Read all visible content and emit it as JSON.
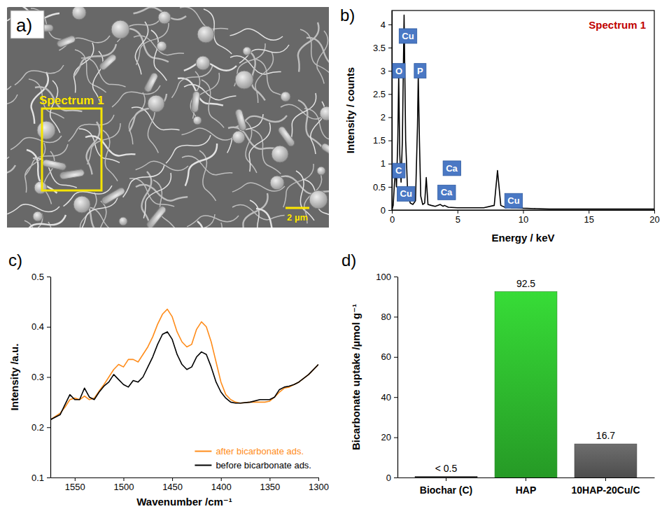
{
  "chart_data": [
    {
      "type": "image",
      "panel": "a)",
      "annotations": [
        "Spectrum 1"
      ],
      "scale_bar": "2 µm"
    },
    {
      "type": "line",
      "panel": "b)",
      "title": "Spectrum 1",
      "x_label": "Energy / keV",
      "y_label": "Intensity / counts",
      "x": [
        0,
        0.1,
        0.2,
        0.28,
        0.35,
        0.45,
        0.52,
        0.6,
        0.7,
        0.8,
        0.93,
        1.05,
        1.2,
        1.4,
        1.6,
        1.8,
        1.95,
        2.01,
        2.1,
        2.2,
        2.35,
        2.5,
        2.62,
        2.75,
        3.0,
        3.3,
        3.69,
        3.9,
        4.01,
        4.3,
        5,
        6,
        7,
        7.8,
        8.05,
        8.3,
        8.7,
        8.9,
        9.1,
        9.5,
        10,
        11,
        12,
        14,
        16,
        18,
        20
      ],
      "values": [
        0,
        0.1,
        0.6,
        0.9,
        0.5,
        1.5,
        2.9,
        1.2,
        0.6,
        1.5,
        4.2,
        1.5,
        0.4,
        0.15,
        0.12,
        0.2,
        1.8,
        2.9,
        1.5,
        0.3,
        0.12,
        0.15,
        0.7,
        0.12,
        0.1,
        0.08,
        0.12,
        0.08,
        0.1,
        0.06,
        0.05,
        0.05,
        0.05,
        0.1,
        0.85,
        0.1,
        0.05,
        0.12,
        0.05,
        0.05,
        0.04,
        0.03,
        0.02,
        0.02,
        0.02,
        0.02,
        0.02
      ],
      "color": "#000000",
      "xlim": [
        0,
        20
      ],
      "xticks": [
        0,
        5,
        10,
        15,
        20
      ],
      "ylim": [
        0,
        4.3
      ],
      "yticks": [
        0,
        0.5,
        1,
        1.5,
        2,
        2.5,
        3,
        3.5,
        4
      ],
      "annotations": [
        {
          "text": "Cu",
          "x": 0.55,
          "y": 3.75
        },
        {
          "text": "O",
          "x": 0.05,
          "y": 3.0
        },
        {
          "text": "P",
          "x": 1.7,
          "y": 3.0
        },
        {
          "text": "C",
          "x": 0.05,
          "y": 0.85
        },
        {
          "text": "Cu",
          "x": 0.4,
          "y": 0.35
        },
        {
          "text": "Ca",
          "x": 3.9,
          "y": 0.9
        },
        {
          "text": "Ca",
          "x": 3.5,
          "y": 0.38
        },
        {
          "text": "Cu",
          "x": 8.6,
          "y": 0.2
        }
      ]
    },
    {
      "type": "line",
      "panel": "c)",
      "x_label": "Wavenumber /cm⁻¹",
      "y_label": "Intensity /a.u.",
      "x": [
        1575,
        1565,
        1560,
        1555,
        1550,
        1545,
        1540,
        1535,
        1530,
        1525,
        1520,
        1515,
        1510,
        1505,
        1500,
        1495,
        1490,
        1485,
        1480,
        1475,
        1470,
        1465,
        1460,
        1455,
        1450,
        1445,
        1440,
        1435,
        1430,
        1425,
        1420,
        1415,
        1410,
        1405,
        1400,
        1395,
        1390,
        1385,
        1380,
        1370,
        1360,
        1355,
        1350,
        1345,
        1340,
        1335,
        1330,
        1325,
        1320,
        1310,
        1300
      ],
      "series": [
        {
          "name": "after bicarbonate ads.",
          "color": "#ff8c1a",
          "values": [
            0.215,
            0.228,
            0.24,
            0.255,
            0.258,
            0.255,
            0.262,
            0.255,
            0.258,
            0.272,
            0.285,
            0.3,
            0.315,
            0.325,
            0.32,
            0.335,
            0.335,
            0.33,
            0.345,
            0.36,
            0.38,
            0.405,
            0.425,
            0.435,
            0.42,
            0.39,
            0.37,
            0.36,
            0.365,
            0.395,
            0.41,
            0.4,
            0.37,
            0.33,
            0.29,
            0.265,
            0.255,
            0.25,
            0.248,
            0.25,
            0.25,
            0.25,
            0.252,
            0.26,
            0.27,
            0.278,
            0.28,
            0.285,
            0.29,
            0.305,
            0.325
          ]
        },
        {
          "name": "before bicarbonate ads.",
          "color": "#000000",
          "values": [
            0.215,
            0.225,
            0.245,
            0.265,
            0.255,
            0.255,
            0.278,
            0.26,
            0.255,
            0.27,
            0.282,
            0.29,
            0.305,
            0.295,
            0.285,
            0.28,
            0.293,
            0.29,
            0.3,
            0.32,
            0.34,
            0.365,
            0.385,
            0.39,
            0.375,
            0.345,
            0.325,
            0.315,
            0.32,
            0.34,
            0.35,
            0.345,
            0.32,
            0.29,
            0.27,
            0.258,
            0.25,
            0.248,
            0.248,
            0.25,
            0.255,
            0.255,
            0.255,
            0.26,
            0.275,
            0.28,
            0.282,
            0.285,
            0.29,
            0.305,
            0.325
          ]
        }
      ],
      "xlim": [
        1575,
        1300
      ],
      "xticks": [
        1550,
        1500,
        1450,
        1400,
        1350,
        1300
      ],
      "ylim": [
        0.1,
        0.5
      ],
      "yticks": [
        0.1,
        0.2,
        0.3,
        0.4,
        0.5
      ],
      "legend": "lower right"
    },
    {
      "type": "bar",
      "panel": "d)",
      "y_label": "Bicarbonate uptake /µmol g⁻¹",
      "categories": [
        "Biochar (C)",
        "HAP",
        "10HAP-20Cu/C"
      ],
      "values": [
        0.5,
        92.5,
        16.7
      ],
      "value_labels": [
        "< 0.5",
        "92.5",
        "16.7"
      ],
      "colors": [
        "#3a3a3a",
        "#2eb82e",
        "#5c5c5c"
      ],
      "ylim": [
        0,
        100
      ],
      "yticks": [
        0,
        20,
        40,
        60,
        80,
        100
      ],
      "data_labels": true
    }
  ]
}
